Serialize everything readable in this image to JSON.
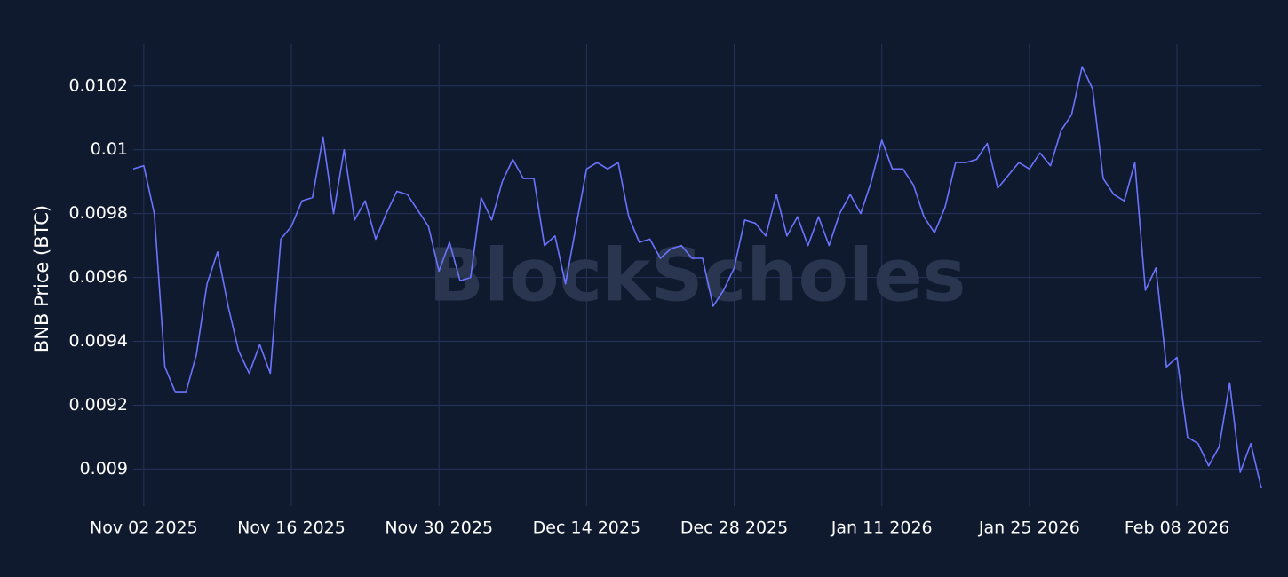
{
  "chart_data": {
    "type": "line",
    "ylabel": "BNB Price (BTC)",
    "watermark": "BlockScholes",
    "x": [
      "2025-11-01",
      "2025-11-02",
      "2025-11-03",
      "2025-11-04",
      "2025-11-05",
      "2025-11-06",
      "2025-11-07",
      "2025-11-08",
      "2025-11-09",
      "2025-11-10",
      "2025-11-11",
      "2025-11-12",
      "2025-11-13",
      "2025-11-14",
      "2025-11-15",
      "2025-11-16",
      "2025-11-17",
      "2025-11-18",
      "2025-11-19",
      "2025-11-20",
      "2025-11-21",
      "2025-11-22",
      "2025-11-23",
      "2025-11-24",
      "2025-11-25",
      "2025-11-26",
      "2025-11-27",
      "2025-11-28",
      "2025-11-29",
      "2025-11-30",
      "2025-12-01",
      "2025-12-02",
      "2025-12-03",
      "2025-12-04",
      "2025-12-05",
      "2025-12-06",
      "2025-12-07",
      "2025-12-08",
      "2025-12-09",
      "2025-12-10",
      "2025-12-11",
      "2025-12-12",
      "2025-12-13",
      "2025-12-14",
      "2025-12-15",
      "2025-12-16",
      "2025-12-17",
      "2025-12-18",
      "2025-12-19",
      "2025-12-20",
      "2025-12-21",
      "2025-12-22",
      "2025-12-23",
      "2025-12-24",
      "2025-12-25",
      "2025-12-26",
      "2025-12-27",
      "2025-12-28",
      "2025-12-29",
      "2025-12-30",
      "2025-12-31",
      "2026-01-01",
      "2026-01-02",
      "2026-01-03",
      "2026-01-04",
      "2026-01-05",
      "2026-01-06",
      "2026-01-07",
      "2026-01-08",
      "2026-01-09",
      "2026-01-10",
      "2026-01-11",
      "2026-01-12",
      "2026-01-13",
      "2026-01-14",
      "2026-01-15",
      "2026-01-16",
      "2026-01-17",
      "2026-01-18",
      "2026-01-19",
      "2026-01-20",
      "2026-01-21",
      "2026-01-22",
      "2026-01-23",
      "2026-01-24",
      "2026-01-25",
      "2026-01-26",
      "2026-01-27",
      "2026-01-28",
      "2026-01-29",
      "2026-01-30",
      "2026-01-31",
      "2026-02-01",
      "2026-02-02",
      "2026-02-03",
      "2026-02-04",
      "2026-02-05",
      "2026-02-06",
      "2026-02-07",
      "2026-02-08",
      "2026-02-09",
      "2026-02-10",
      "2026-02-11",
      "2026-02-12",
      "2026-02-13",
      "2026-02-14",
      "2026-02-15",
      "2026-02-16"
    ],
    "series": [
      {
        "name": "BNB Price (BTC)",
        "color": "#6b73ff",
        "values": [
          0.00994,
          0.00995,
          0.0098,
          0.00932,
          0.00924,
          0.00924,
          0.00936,
          0.00958,
          0.00968,
          0.00951,
          0.00937,
          0.0093,
          0.00939,
          0.0093,
          0.00972,
          0.00976,
          0.00984,
          0.00985,
          0.01004,
          0.0098,
          0.01,
          0.00978,
          0.00984,
          0.00972,
          0.0098,
          0.00987,
          0.00986,
          0.00981,
          0.00976,
          0.00962,
          0.00971,
          0.00959,
          0.0096,
          0.00985,
          0.00978,
          0.0099,
          0.00997,
          0.00991,
          0.00991,
          0.0097,
          0.00973,
          0.00958,
          0.00976,
          0.00994,
          0.00996,
          0.00994,
          0.00996,
          0.00979,
          0.00971,
          0.00972,
          0.00966,
          0.00969,
          0.0097,
          0.00966,
          0.00966,
          0.00951,
          0.00956,
          0.00963,
          0.00978,
          0.00977,
          0.00973,
          0.00986,
          0.00973,
          0.00979,
          0.0097,
          0.00979,
          0.0097,
          0.0098,
          0.00986,
          0.0098,
          0.0099,
          0.01003,
          0.00994,
          0.00994,
          0.00989,
          0.00979,
          0.00974,
          0.00982,
          0.00996,
          0.00996,
          0.00997,
          0.01002,
          0.00988,
          0.00992,
          0.00996,
          0.00994,
          0.00999,
          0.00995,
          0.01006,
          0.01011,
          0.01026,
          0.01019,
          0.00991,
          0.00986,
          0.00984,
          0.00996,
          0.00956,
          0.00963,
          0.00932,
          0.00935,
          0.0091,
          0.00908,
          0.00901,
          0.00907,
          0.00927,
          0.00899,
          0.00908,
          0.00894
        ]
      }
    ],
    "xlim": [
      "2025-11-01",
      "2026-02-16"
    ],
    "xticks": [
      {
        "value": "2025-11-02",
        "label": "Nov 02 2025"
      },
      {
        "value": "2025-11-16",
        "label": "Nov 16 2025"
      },
      {
        "value": "2025-11-30",
        "label": "Nov 30 2025"
      },
      {
        "value": "2025-12-14",
        "label": "Dec 14 2025"
      },
      {
        "value": "2025-12-28",
        "label": "Dec 28 2025"
      },
      {
        "value": "2026-01-11",
        "label": "Jan 11 2026"
      },
      {
        "value": "2026-01-25",
        "label": "Jan 25 2026"
      },
      {
        "value": "2026-02-08",
        "label": "Feb 08 2026"
      }
    ],
    "ylim": [
      0.00894,
      0.01033
    ],
    "yticks": [
      0.009,
      0.0092,
      0.0094,
      0.0096,
      0.0098,
      0.01,
      0.0102
    ],
    "grid": true
  }
}
